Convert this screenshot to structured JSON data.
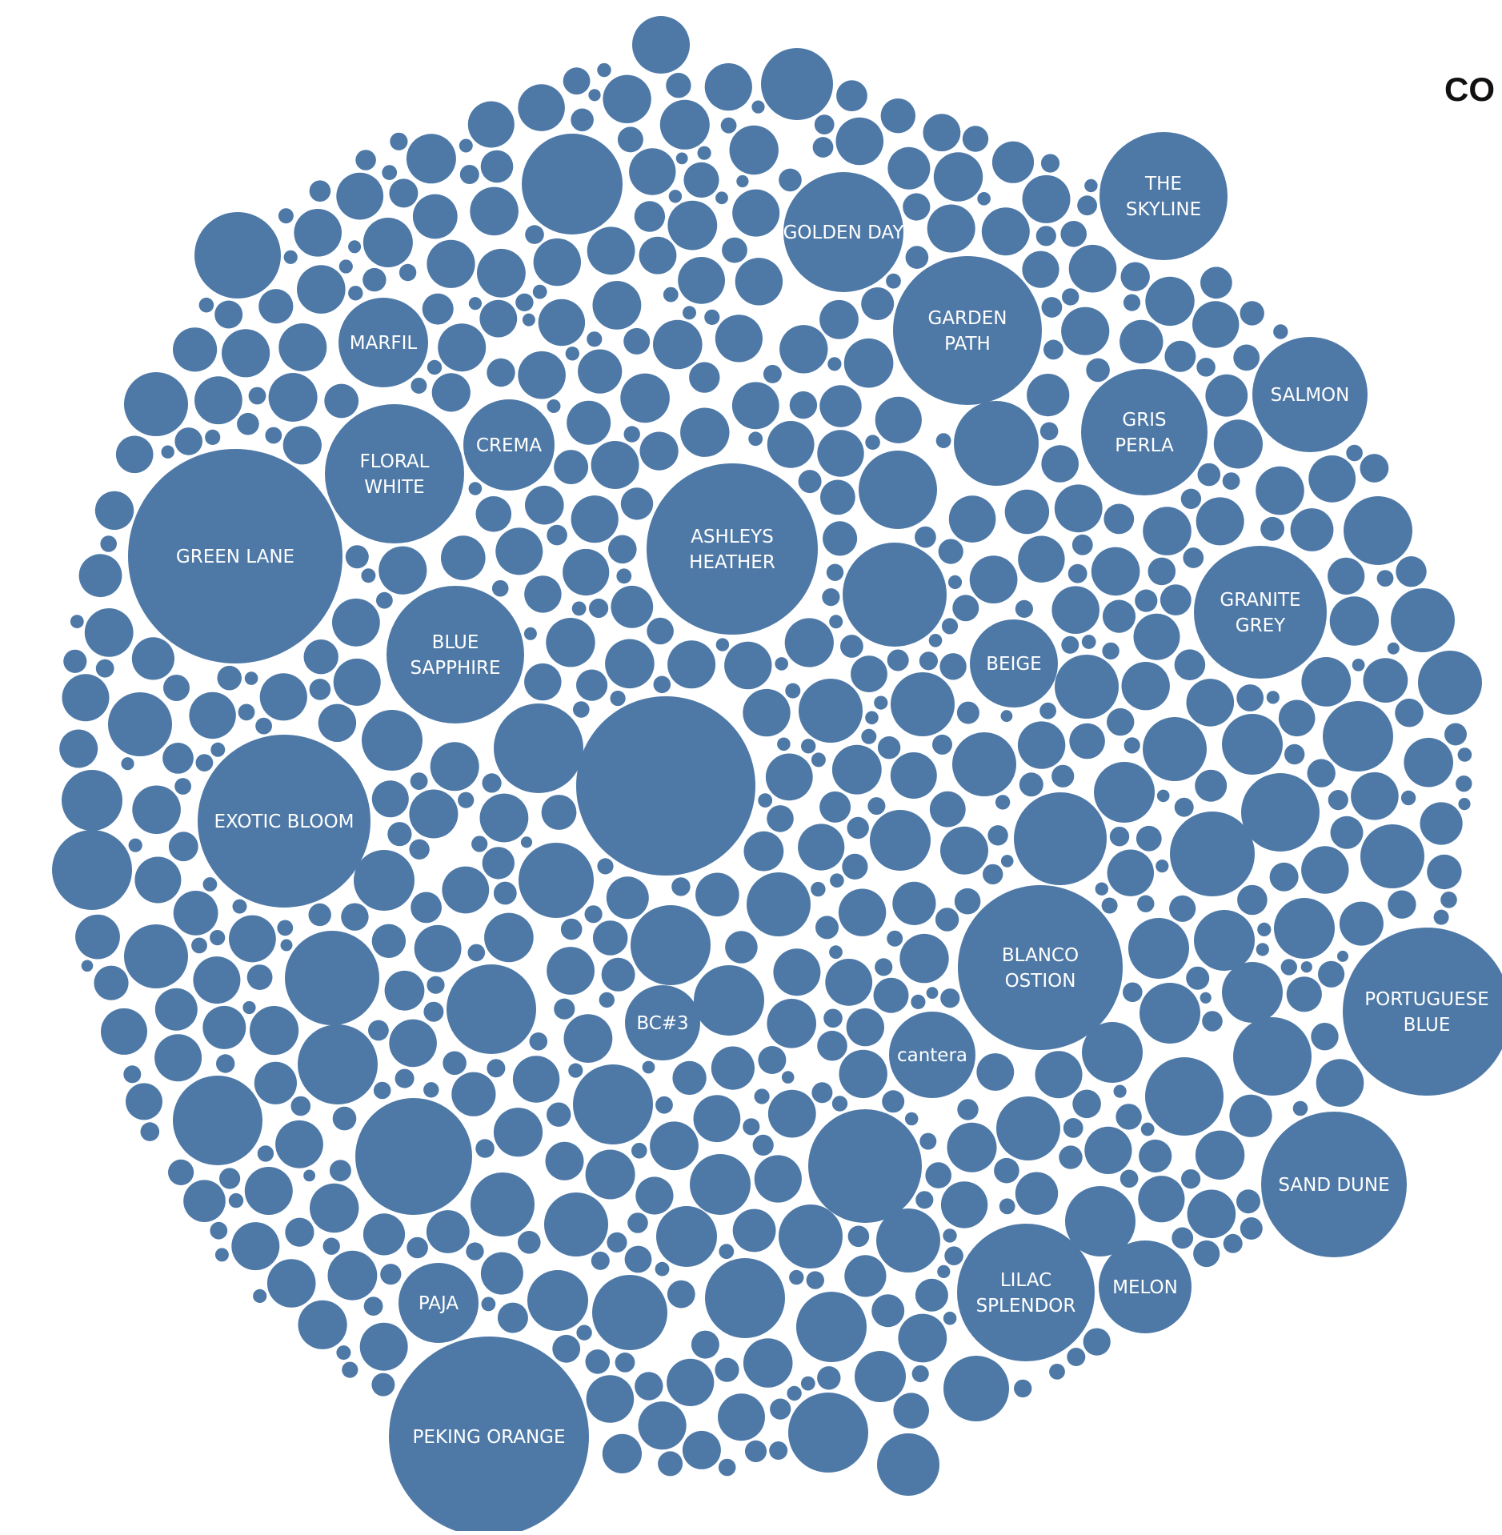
{
  "title": "CO",
  "colors": {
    "bubble": "#4e79a7",
    "label": "#ffffff",
    "title": "#111111"
  },
  "chart_data": {
    "type": "bubble",
    "title": "CO",
    "xlabel": "",
    "ylabel": "",
    "legend": "none",
    "grid": false,
    "labeled_bubbles": [
      {
        "label": "THE SKYLINE",
        "lines": [
          "THE",
          "SKYLINE"
        ],
        "rank": 10
      },
      {
        "label": "GOLDEN DAY",
        "lines": [
          "GOLDEN DAY"
        ],
        "rank": 5
      },
      {
        "label": "GARDEN PATH",
        "lines": [
          "GARDEN",
          "PATH"
        ],
        "rank": 7
      },
      {
        "label": "MARFIL",
        "lines": [
          "MARFIL"
        ],
        "rank": 19
      },
      {
        "label": "SALMON",
        "lines": [
          "SALMON"
        ],
        "rank": 12
      },
      {
        "label": "GRIS PERLA",
        "lines": [
          "GRIS",
          "PERLA"
        ],
        "rank": 11
      },
      {
        "label": "FLORAL WHITE",
        "lines": [
          "FLORAL",
          "WHITE"
        ],
        "rank": 13
      },
      {
        "label": "CREMA",
        "lines": [
          "CREMA"
        ],
        "rank": 20
      },
      {
        "label": "GREEN LANE",
        "lines": [
          "GREEN LANE"
        ],
        "rank": 2
      },
      {
        "label": "ASHLEYS HEATHER",
        "lines": [
          "ASHLEYS",
          "HEATHER"
        ],
        "rank": 6
      },
      {
        "label": "GRANITE GREY",
        "lines": [
          "GRANITE",
          "GREY"
        ],
        "rank": 9
      },
      {
        "label": "BLUE SAPPHIRE",
        "lines": [
          "BLUE",
          "SAPPHIRE"
        ],
        "rank": 14
      },
      {
        "label": "BEIGE",
        "lines": [
          "BEIGE"
        ],
        "rank": 21
      },
      {
        "label": "EXOTIC BLOOM",
        "lines": [
          "EXOTIC BLOOM"
        ],
        "rank": 4
      },
      {
        "label": "BLANCO OSTION",
        "lines": [
          "BLANCO",
          "OSTION"
        ],
        "rank": 8
      },
      {
        "label": "PORTUGUESE BLUE",
        "lines": [
          "PORTUGUESE",
          "BLUE"
        ],
        "rank": 3
      },
      {
        "label": "BC#3",
        "lines": [
          "BC#3"
        ],
        "rank": 23
      },
      {
        "label": "cantera",
        "lines": [
          "cantera"
        ],
        "rank": 22
      },
      {
        "label": "SAND DUNE",
        "lines": [
          "SAND DUNE"
        ],
        "rank": 7
      },
      {
        "label": "LILAC SPLENDOR",
        "lines": [
          "LILAC",
          "SPLENDOR"
        ],
        "rank": 9
      },
      {
        "label": "MELON",
        "lines": [
          "MELON"
        ],
        "rank": 18
      },
      {
        "label": "PAJA",
        "lines": [
          "PAJA"
        ],
        "rank": 20
      },
      {
        "label": "PEKING ORANGE",
        "lines": [
          "PEKING ORANGE"
        ],
        "rank": 1
      }
    ],
    "unlabeled_bubble_count": 1000
  }
}
